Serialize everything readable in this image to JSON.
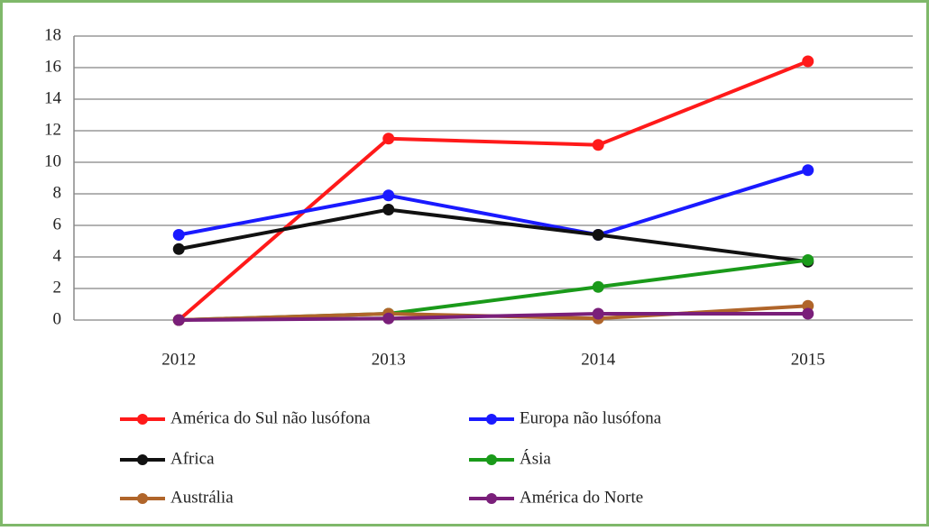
{
  "chart_data": {
    "type": "line",
    "categories": [
      "2012",
      "2013",
      "2014",
      "2015"
    ],
    "ylim": [
      0,
      18
    ],
    "yticks": [
      0,
      2,
      4,
      6,
      8,
      10,
      12,
      14,
      16,
      18
    ],
    "grid": true,
    "legend": "bottom",
    "series": [
      {
        "name": "América do Sul não lusófona",
        "color": "#ff1a1a",
        "values": [
          0,
          11.5,
          11.1,
          16.4
        ]
      },
      {
        "name": "Europa não lusófona",
        "color": "#1a1aff",
        "values": [
          5.4,
          7.9,
          5.4,
          9.5
        ]
      },
      {
        "name": "Africa",
        "color": "#111111",
        "values": [
          4.5,
          7.0,
          5.4,
          3.7
        ]
      },
      {
        "name": "Ásia",
        "color": "#1a9a1a",
        "values": [
          0,
          0.4,
          2.1,
          3.8
        ]
      },
      {
        "name": "Austrália",
        "color": "#b0652a",
        "values": [
          0,
          0.4,
          0.1,
          0.9
        ]
      },
      {
        "name": "América do Norte",
        "color": "#7a1f7a",
        "values": [
          0,
          0.1,
          0.4,
          0.4
        ]
      }
    ]
  }
}
